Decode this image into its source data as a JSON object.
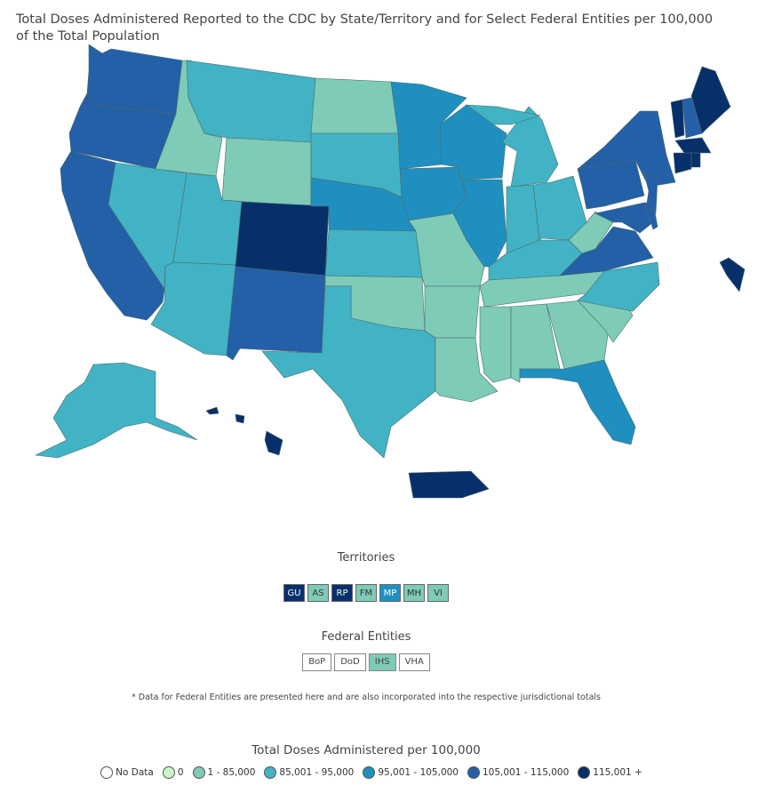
{
  "title": "Total Doses Administered Reported to the CDC by State/Territory and for Select Federal Entities per 100,000 of the Total Population",
  "colors": {
    "no_data": "#ffffff",
    "zero": "#c9f5c9",
    "c1": "#7ecbb8",
    "c2": "#41b3c4",
    "c3": "#1f8fc0",
    "c4": "#2360a8",
    "c5": "#07306b"
  },
  "states": {
    "WA": "c4",
    "OR": "c4",
    "CA": "c4",
    "NV": "c2",
    "ID": "c1",
    "MT": "c2",
    "WY": "c1",
    "UT": "c2",
    "AZ": "c2",
    "CO": "c5",
    "NM": "c4",
    "ND": "c1",
    "SD": "c2",
    "NE": "c3",
    "KS": "c2",
    "OK": "c1",
    "TX": "c2",
    "MN": "c3",
    "IA": "c3",
    "MO": "c1",
    "AR": "c1",
    "LA": "c1",
    "WI": "c3",
    "IL": "c3",
    "MI": "c2",
    "MI_UP": "c2",
    "IN": "c2",
    "OH": "c2",
    "KY": "c2",
    "TN": "c1",
    "MS": "c1",
    "AL": "c1",
    "GA": "c1",
    "FL": "c3",
    "SC": "c1",
    "NC": "c2",
    "VA": "c4",
    "WV": "c1",
    "PA": "c4",
    "NY": "c4",
    "NJ": "c4",
    "MD": "c4",
    "DE": "c4",
    "VT": "c5",
    "NH": "c4",
    "ME": "c5",
    "MA": "c5",
    "CT": "c5",
    "RI": "c5",
    "DC": "c5",
    "AK": "c2",
    "HI": "c5",
    "PR": "c5"
  },
  "territories": {
    "title": "Territories",
    "items": [
      {
        "label": "GU",
        "cat": "c5"
      },
      {
        "label": "AS",
        "cat": "c1"
      },
      {
        "label": "RP",
        "cat": "c5"
      },
      {
        "label": "FM",
        "cat": "c1"
      },
      {
        "label": "MP",
        "cat": "c3"
      },
      {
        "label": "MH",
        "cat": "c1"
      },
      {
        "label": "VI",
        "cat": "c1"
      }
    ]
  },
  "federal": {
    "title": "Federal Entities",
    "items": [
      {
        "label": "BoP",
        "cat": "no_data"
      },
      {
        "label": "DoD",
        "cat": "no_data"
      },
      {
        "label": "IHS",
        "cat": "c1"
      },
      {
        "label": "VHA",
        "cat": "no_data"
      }
    ]
  },
  "note": "* Data for Federal Entities are presented here and are also incorporated into the respective jurisdictional totals",
  "legend": {
    "title": "Total Doses Administered per 100,000",
    "items": [
      {
        "label": "No Data",
        "cat": "no_data"
      },
      {
        "label": "0",
        "cat": "zero"
      },
      {
        "label": "1 - 85,000",
        "cat": "c1"
      },
      {
        "label": "85,001 - 95,000",
        "cat": "c2"
      },
      {
        "label": "95,001 - 105,000",
        "cat": "c3"
      },
      {
        "label": "105,001 - 115,000",
        "cat": "c4"
      },
      {
        "label": "115,001 +",
        "cat": "c5"
      }
    ]
  }
}
